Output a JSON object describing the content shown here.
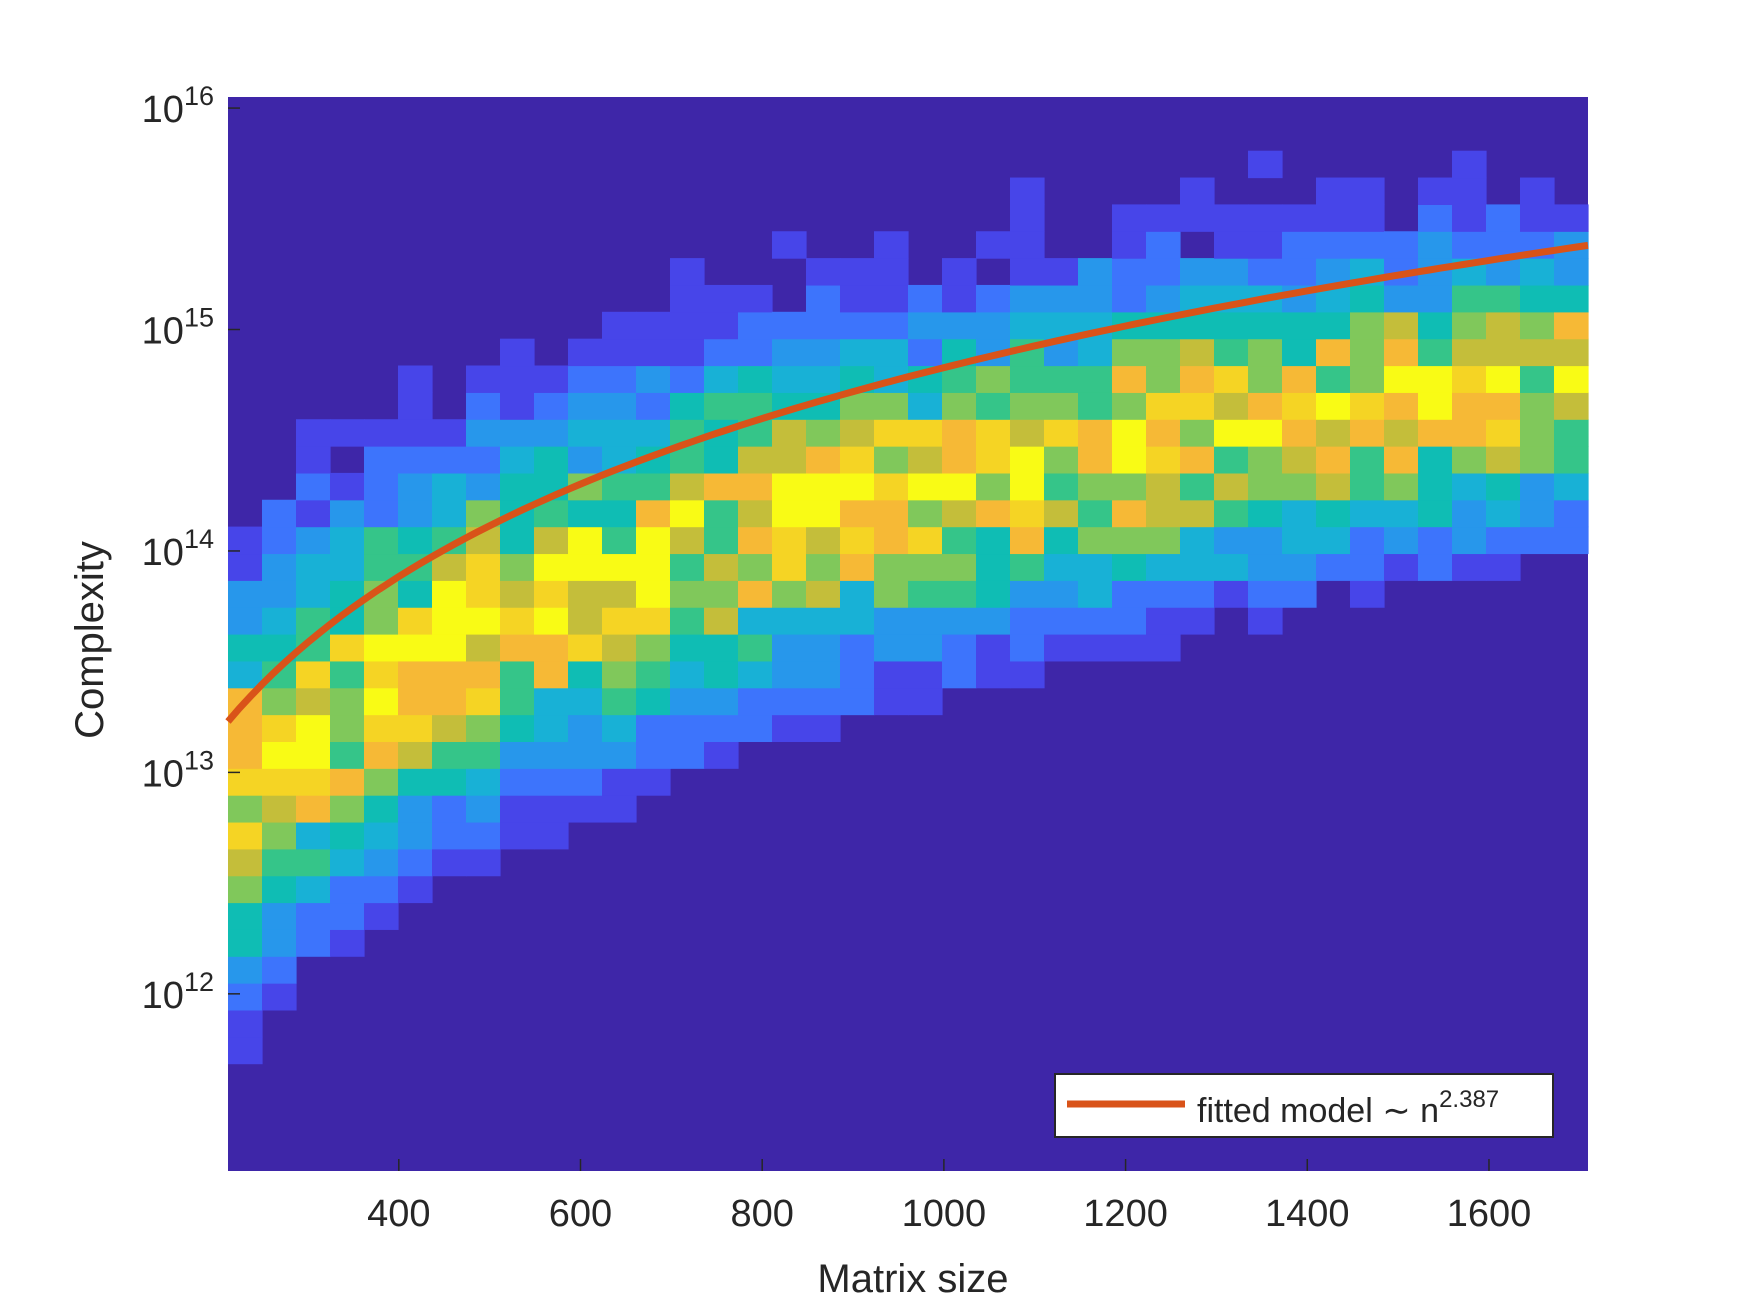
{
  "chart_data": {
    "type": "heatmap",
    "title": "",
    "xlabel": "Matrix size",
    "ylabel": "Complexity",
    "xlim": [
      212,
      1709
    ],
    "ylim_log10": [
      11.2,
      16.05
    ],
    "y_scale": "log",
    "x_ticks": [
      {
        "value": 400,
        "label": "400"
      },
      {
        "value": 600,
        "label": "600"
      },
      {
        "value": 800,
        "label": "800"
      },
      {
        "value": 1000,
        "label": "1000"
      },
      {
        "value": 1200,
        "label": "1200"
      },
      {
        "value": 1400,
        "label": "1400"
      },
      {
        "value": 1600,
        "label": "1600"
      }
    ],
    "y_ticks": [
      {
        "exponent": 12,
        "base": "10",
        "power": "12"
      },
      {
        "exponent": 13,
        "base": "10",
        "power": "13"
      },
      {
        "exponent": 14,
        "base": "10",
        "power": "14"
      },
      {
        "exponent": 15,
        "base": "10",
        "power": "15"
      },
      {
        "exponent": 16,
        "base": "10",
        "power": "16"
      }
    ],
    "grid": false,
    "colormap": "parula",
    "colormap_stops": [
      "#3e26a8",
      "#4745e9",
      "#3d74fc",
      "#2797eb",
      "#18b1d6",
      "#0fbdb4",
      "#35c589",
      "#80c85b",
      "#c4be3a",
      "#f6b936",
      "#f5d424",
      "#f9fb15"
    ],
    "heatmap": {
      "x_edges": [
        212,
        1709
      ],
      "n_columns": 40,
      "log10_y_edges": [
        11.2,
        16.05
      ],
      "n_rows": 40,
      "cells": [
        [
          "3",
          "22"
        ],
        [
          "4",
          "4243"
        ],
        [
          "5",
          "43",
          "122"
        ],
        [
          "6",
          "33",
          "122"
        ],
        [
          "7",
          "4",
          "1"
        ],
        [
          "8",
          "223",
          "111"
        ],
        [
          "9",
          "2233",
          "21"
        ],
        [
          "10",
          "423",
          "111"
        ],
        [
          "11",
          "444",
          "113"
        ],
        [
          "12",
          "555",
          "11"
        ],
        [
          "13",
          "63",
          "1233"
        ],
        [
          "14",
          "73",
          "11"
        ],
        [
          "15",
          "84",
          "111"
        ],
        [
          "16",
          "94",
          "21",
          "1"
        ],
        [
          "17",
          "104",
          "31",
          "12"
        ],
        [
          "18",
          "114",
          "42",
          "112",
          "2"
        ],
        [
          "19",
          "124",
          "34",
          "122",
          "11"
        ],
        [
          "20",
          "135",
          "24",
          "113",
          "1"
        ],
        [
          "21",
          "145",
          "154",
          "133"
        ],
        [
          "22",
          "155",
          "24",
          "223"
        ],
        [
          "23",
          "166",
          "134",
          "1223",
          "11"
        ],
        [
          "24",
          "176",
          "223",
          "112",
          "31"
        ],
        [
          "25",
          "186",
          "45",
          "234",
          "11"
        ],
        [
          "26",
          "196",
          "334",
          "1323",
          "21"
        ],
        [
          "27",
          "207",
          "24",
          "4441",
          "331"
        ],
        [
          "28",
          "217",
          "1133",
          "5557",
          "32"
        ],
        [
          "29",
          "227",
          "1155",
          "4455",
          "2"
        ],
        [
          "30",
          "237",
          "4433",
          "1222",
          "3"
        ],
        [
          "31",
          "247",
          "24455",
          "22",
          "2"
        ],
        [
          "32",
          "257",
          "2344",
          "444",
          "1"
        ],
        [
          "33",
          "267",
          "3444",
          "4324",
          "1"
        ],
        [
          "34",
          "277",
          "2237",
          "544",
          "1"
        ],
        [
          "35",
          "286",
          "2441",
          "4244",
          "2"
        ],
        [
          "36",
          "296",
          "4445",
          "5411",
          "4"
        ],
        [
          "37",
          "306",
          "5554",
          "5444",
          "3"
        ],
        [
          "38",
          "316",
          "4445",
          "4454",
          "2"
        ],
        [
          "39",
          "325",
          "4445",
          "4533",
          "1"
        ]
      ]
    },
    "series": [
      {
        "name": "fitted model ~ n^2.387",
        "model": "power",
        "exponent": 2.387,
        "x_range": [
          212,
          1709
        ],
        "log10_y_range": [
          13.23,
          15.38
        ],
        "color": "#d95319"
      }
    ],
    "legend": {
      "placement": "bottom-right",
      "label": "fitted model ",
      "tilde": "∼",
      "n": " n",
      "power": "2.387"
    }
  }
}
